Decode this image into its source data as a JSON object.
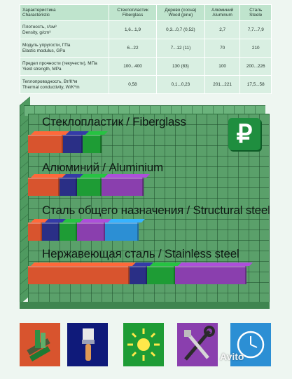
{
  "table": {
    "headers": [
      {
        "ru": "Характеристика",
        "en": "Characteristic"
      },
      {
        "ru": "Стеклопластик",
        "en": "Fiberglass"
      },
      {
        "ru": "Дерево (сосна)",
        "en": "Wood (pine)"
      },
      {
        "ru": "Алюминий",
        "en": "Aluminum"
      },
      {
        "ru": "Сталь",
        "en": "Steele"
      }
    ],
    "rows": [
      {
        "ru": "Плотность, г/см³",
        "en": "Density, g/cm³",
        "v": [
          "1,6...1,9",
          "0,3...0,7 (0,52)",
          "2,7",
          "7,7...7,9"
        ]
      },
      {
        "ru": "Модуль упругости, ГПа",
        "en": "Elastic modulus, GPa",
        "v": [
          "6...22",
          "7...12 (11)",
          "70",
          "210"
        ]
      },
      {
        "ru": "Предел прочности (текучести), МПа",
        "en": "Yield strength, MPa",
        "v": [
          "100...400",
          "130 (83)",
          "100",
          "200...226"
        ]
      },
      {
        "ru": "Теплопроводность, Вт/К*м",
        "en": "Thermal conductivity, W/K*m",
        "v": [
          "0,58",
          "0,1...0,23",
          "201...221",
          "17,5...58"
        ]
      }
    ]
  },
  "materials": [
    {
      "label": "Стеклопластик / Fiberglass",
      "segments": [
        50,
        28,
        27
      ]
    },
    {
      "label": "Алюминий / Aluminium",
      "segments": [
        45,
        25,
        35,
        60
      ]
    },
    {
      "label": "Сталь общего назначения / Structural steel",
      "segments": [
        20,
        25,
        25,
        40,
        48
      ]
    },
    {
      "label": "Нержавеющая сталь / Stainless steel",
      "segments": [
        145,
        25,
        40,
        102
      ]
    }
  ],
  "colors": {
    "seg": [
      "#d8542e",
      "#2a2f86",
      "#1e9c35",
      "#8a3fae",
      "#2c8fd4"
    ],
    "grid": "#5aa06a",
    "ruble_bg": "#1f8e3f"
  },
  "ruble_symbol": "₽",
  "tiles": [
    "profile-icon",
    "brush-icon",
    "sun-icon",
    "wrench-icon",
    "clock-icon"
  ],
  "watermark": "Avito"
}
